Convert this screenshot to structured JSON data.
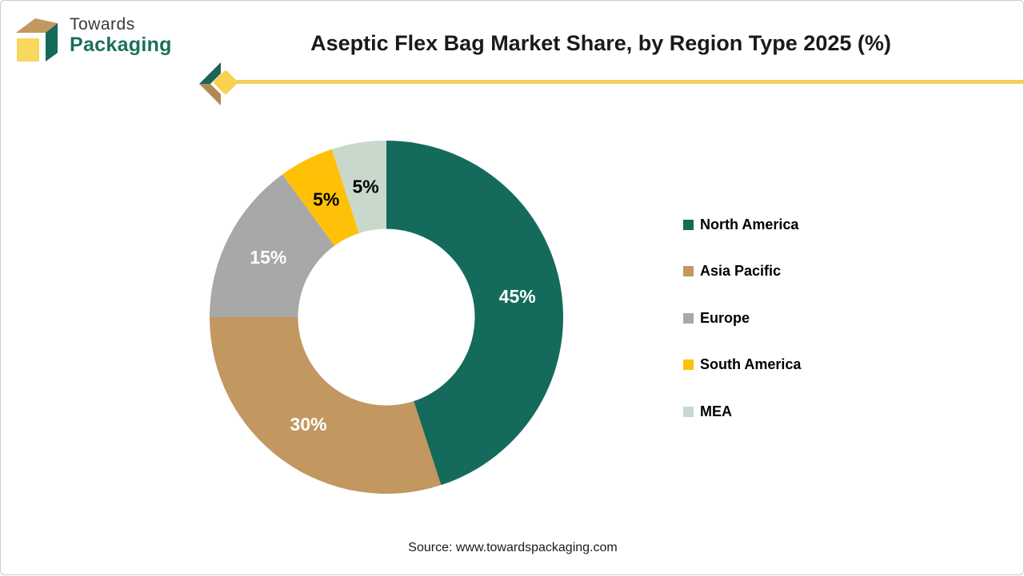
{
  "logo": {
    "line1": "Towards",
    "line2": "Packaging"
  },
  "header": {
    "title": "Aseptic Flex Bag Market Share, by Region Type 2025 (%)"
  },
  "chart_data": {
    "type": "pie",
    "subtype": "donut",
    "title": "Aseptic Flex Bag Market Share, by Region Type 2025 (%)",
    "categories": [
      "North America",
      "Asia Pacific",
      "Europe",
      "South America",
      "MEA"
    ],
    "values": [
      45,
      30,
      15,
      5,
      5
    ],
    "unit": "%",
    "data_labels": [
      "45%",
      "30%",
      "15%",
      "5%",
      "5%"
    ],
    "colors": [
      "#146B5C",
      "#C29760",
      "#A8A8A8",
      "#FFC107",
      "#C8D9CC"
    ],
    "data_label_colors": [
      "#FFFFFF",
      "#FFFFFF",
      "#FFFFFF",
      "#000000",
      "#000000"
    ],
    "legend_position": "right",
    "start_angle_deg": 0,
    "direction": "clockwise",
    "inner_radius_ratio": 0.5
  },
  "footer": {
    "source": "Source: www.towardspackaging.com"
  },
  "theme": {
    "brand_green": "#146B5C",
    "brand_tan": "#C29760",
    "brand_yellow": "#F8D75F",
    "divider_line_yellow": "#F0CF5F",
    "title_color": "#1A1A1A"
  }
}
